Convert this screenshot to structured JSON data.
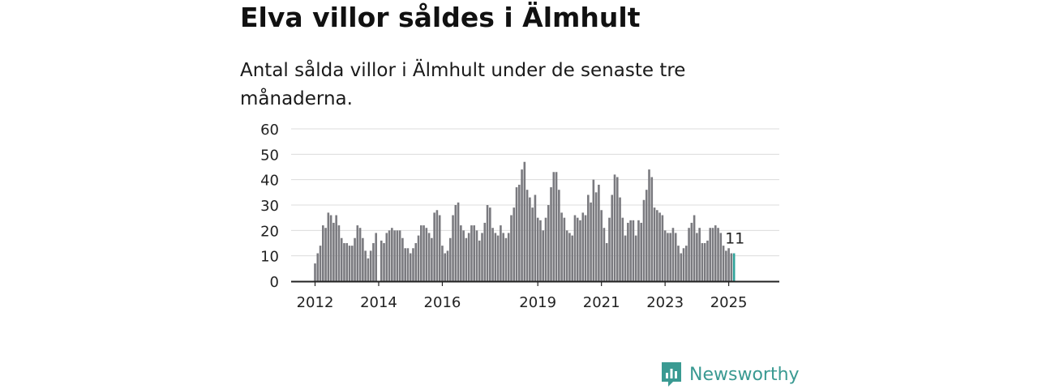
{
  "header": {
    "title": "Elva villor såldes i Älmhult",
    "subtitle": "Antal sålda villor i Älmhult under de senaste tre månaderna."
  },
  "brand": {
    "name": "Newsworthy"
  },
  "colors": {
    "bar": "#7a7a7f",
    "highlight": "#2fa39a",
    "grid": "#dcdcdc",
    "axis": "#222222"
  },
  "chart_data": {
    "type": "bar",
    "title": "",
    "xlabel": "",
    "ylabel": "",
    "ylim": [
      0,
      60
    ],
    "yticks": [
      0,
      10,
      20,
      30,
      40,
      50,
      60
    ],
    "xticks": [
      "2012",
      "2014",
      "2016",
      "2019",
      "2021",
      "2023",
      "2025"
    ],
    "start": "2012-01",
    "grid": true,
    "highlight_last": true,
    "last_value_label": "11",
    "values": [
      7,
      11,
      14,
      22,
      21,
      27,
      26,
      23,
      26,
      22,
      17,
      15,
      15,
      14,
      14,
      17,
      22,
      21,
      17,
      12,
      9,
      12,
      15,
      19,
      0,
      16,
      15,
      19,
      20,
      21,
      20,
      20,
      20,
      17,
      13,
      13,
      11,
      13,
      15,
      18,
      22,
      22,
      21,
      19,
      17,
      27,
      28,
      26,
      14,
      11,
      12,
      17,
      26,
      30,
      31,
      22,
      20,
      17,
      19,
      22,
      22,
      20,
      16,
      19,
      23,
      30,
      29,
      21,
      19,
      18,
      22,
      19,
      17,
      19,
      26,
      29,
      37,
      38,
      44,
      47,
      36,
      33,
      29,
      34,
      25,
      24,
      20,
      25,
      30,
      37,
      43,
      43,
      36,
      27,
      25,
      20,
      19,
      18,
      26,
      25,
      24,
      27,
      26,
      34,
      31,
      40,
      35,
      38,
      28,
      21,
      15,
      25,
      34,
      42,
      41,
      33,
      25,
      18,
      23,
      24,
      24,
      18,
      24,
      23,
      32,
      36,
      44,
      41,
      29,
      28,
      27,
      26,
      20,
      19,
      19,
      21,
      19,
      14,
      11,
      13,
      14,
      21,
      23,
      26,
      19,
      21,
      15,
      15,
      16,
      21,
      21,
      22,
      21,
      19,
      14,
      12,
      13,
      11,
      11
    ]
  }
}
